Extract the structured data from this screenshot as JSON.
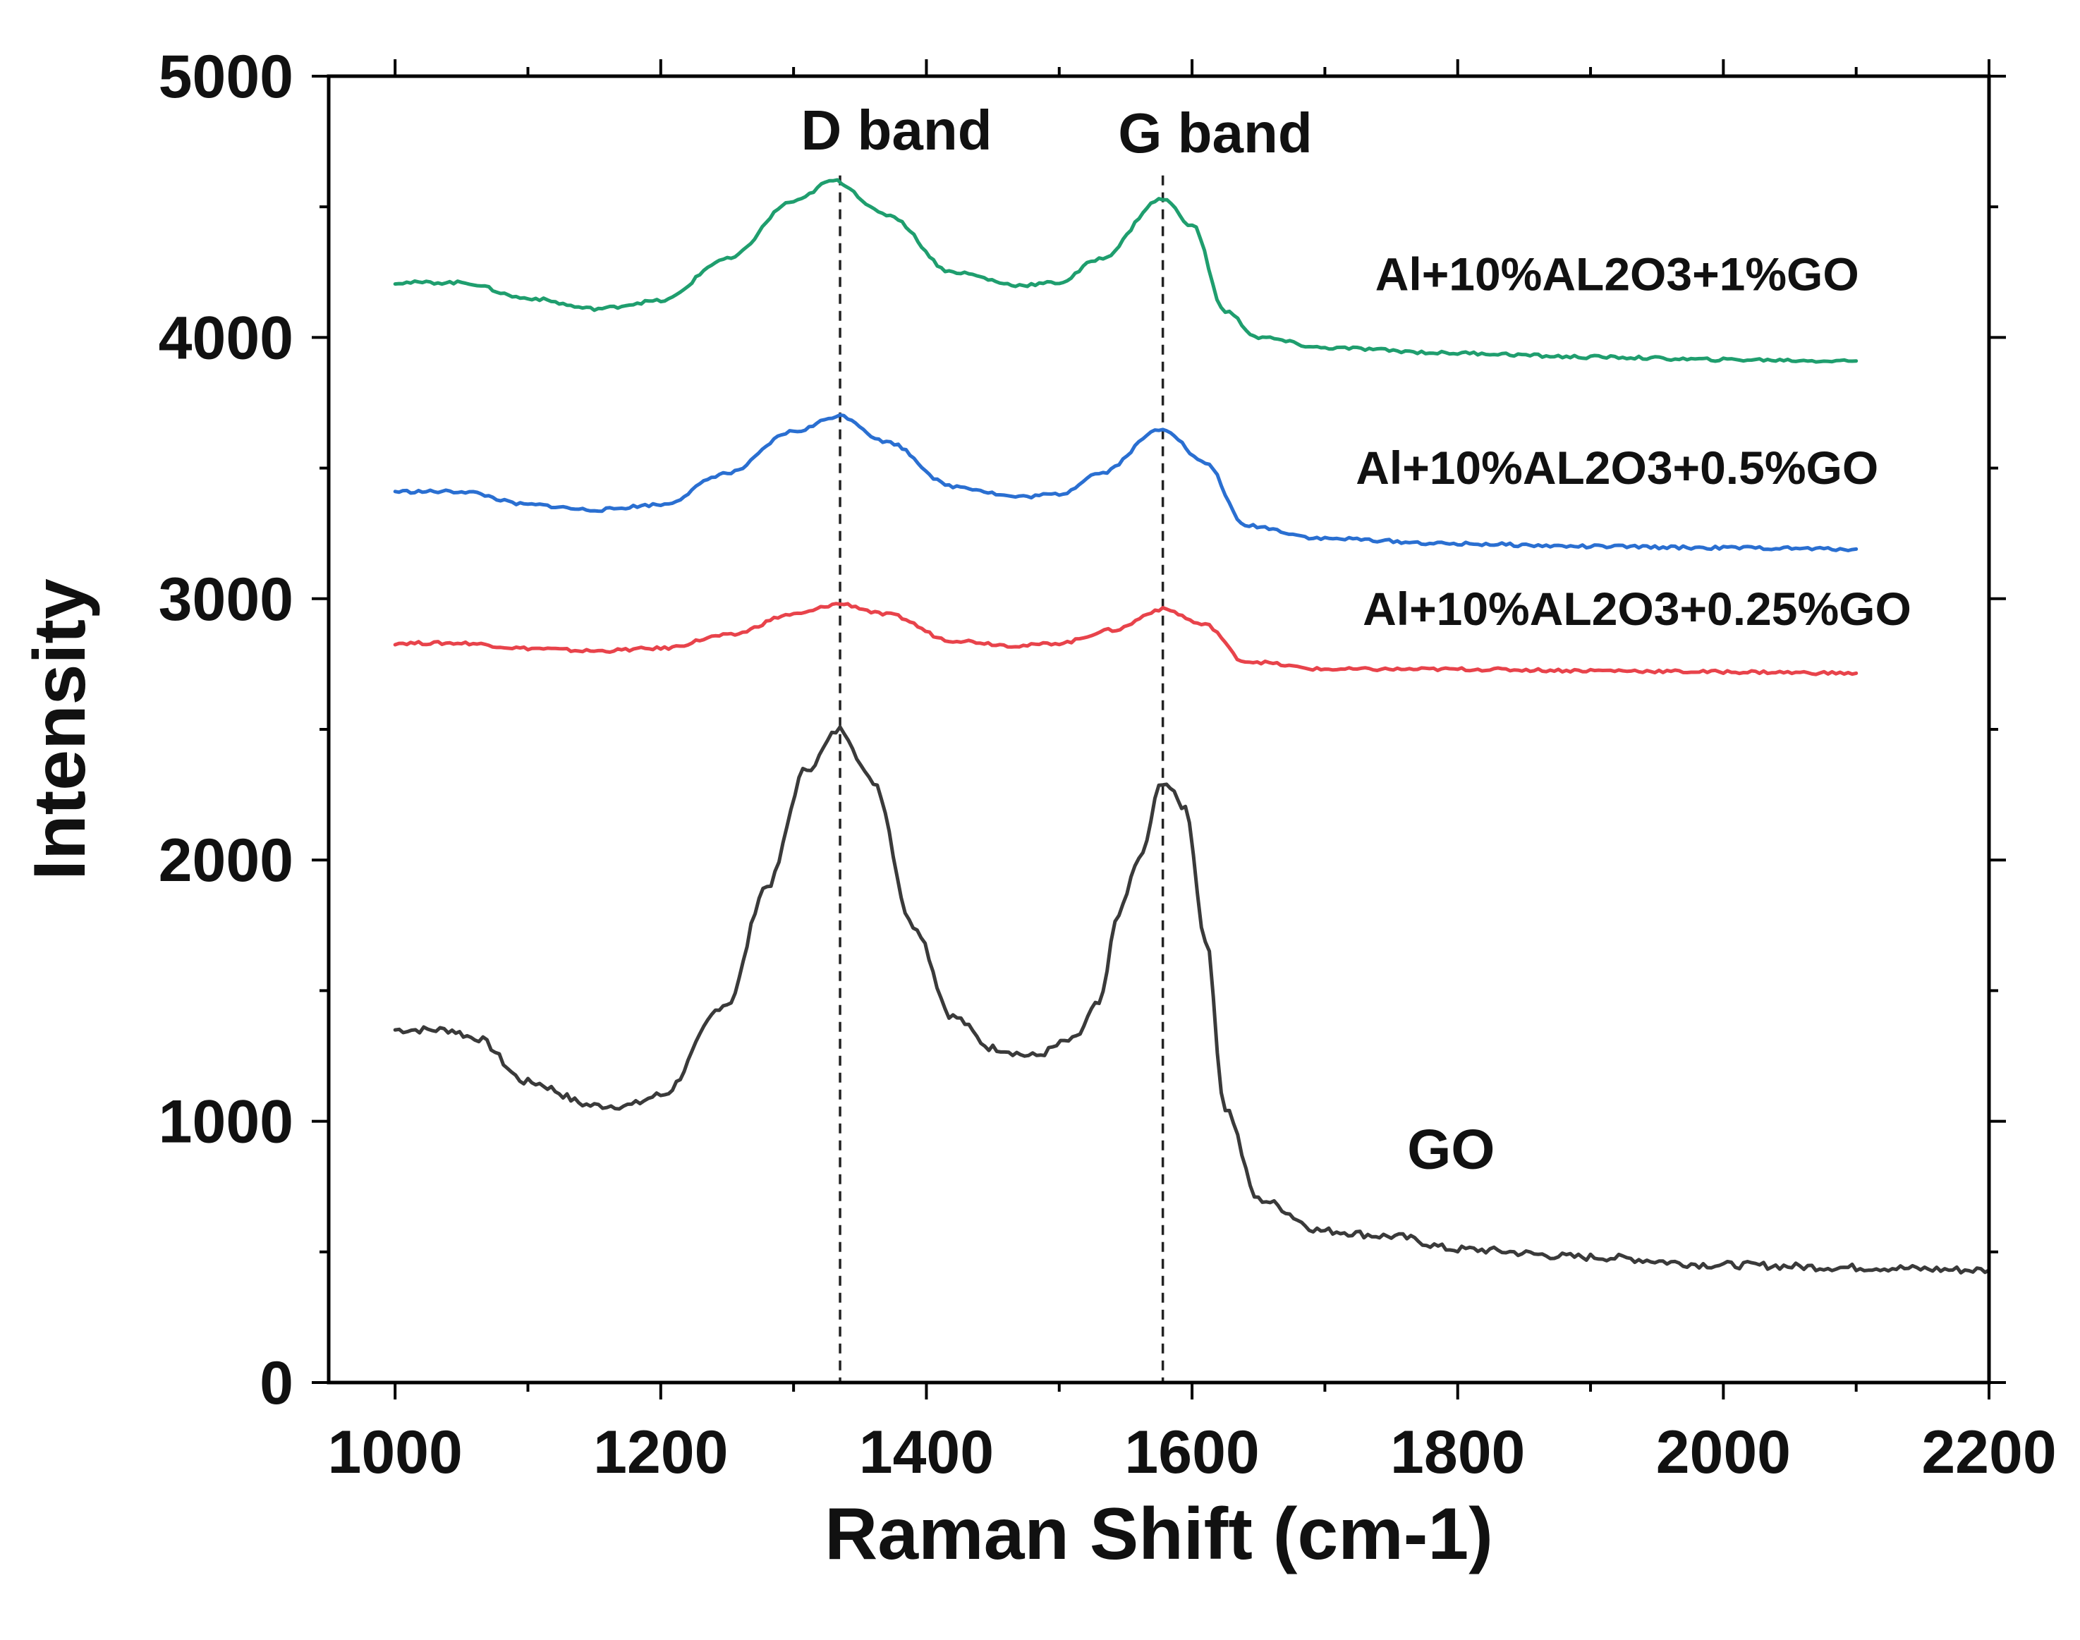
{
  "chart_data": {
    "type": "line",
    "xlabel": "Raman Shift (cm-1)",
    "ylabel": "Intensity",
    "xlim": [
      950,
      2200
    ],
    "ylim": [
      0,
      5000
    ],
    "x_ticks": [
      1000,
      1200,
      1400,
      1600,
      1800,
      2000,
      2200
    ],
    "y_ticks": [
      0,
      1000,
      2000,
      3000,
      4000,
      5000
    ],
    "grid": false,
    "reference_lines": [
      {
        "name": "D band",
        "x": 1335,
        "label": "D band"
      },
      {
        "name": "G band",
        "x": 1578,
        "label": "G band"
      }
    ],
    "series": [
      {
        "name": "GO",
        "label": "GO",
        "color": "#3a3a3a",
        "x": [
          1000,
          1040,
          1060,
          1100,
          1150,
          1175,
          1200,
          1250,
          1280,
          1310,
          1335,
          1360,
          1390,
          1420,
          1450,
          1480,
          1510,
          1530,
          1545,
          1560,
          1578,
          1595,
          1610,
          1625,
          1650,
          1700,
          1750,
          1800,
          1900,
          2000,
          2100,
          2200
        ],
        "y": [
          1350,
          1350,
          1320,
          1150,
          1060,
          1060,
          1100,
          1450,
          1900,
          2350,
          2500,
          2300,
          1750,
          1400,
          1280,
          1250,
          1310,
          1450,
          1800,
          2000,
          2300,
          2200,
          1700,
          1050,
          700,
          580,
          560,
          510,
          480,
          450,
          440,
          430
        ]
      },
      {
        "name": "Al+10%AL2O3+0.25%GO",
        "label": "Al+10%AL2O3+0.25%GO",
        "color": "#e8434b",
        "x": [
          1000,
          1050,
          1100,
          1150,
          1200,
          1250,
          1300,
          1335,
          1370,
          1420,
          1470,
          1500,
          1540,
          1578,
          1610,
          1640,
          1700,
          1800,
          1900,
          2000,
          2100
        ],
        "y": [
          2830,
          2830,
          2810,
          2800,
          2810,
          2860,
          2940,
          2980,
          2940,
          2840,
          2820,
          2830,
          2880,
          2960,
          2900,
          2760,
          2730,
          2730,
          2725,
          2720,
          2715
        ]
      },
      {
        "name": "Al+10%AL2O3+0.5%GO",
        "label": "Al+10%AL2O3+0.5%GO",
        "color": "#2a6fd1",
        "x": [
          1000,
          1050,
          1100,
          1150,
          1200,
          1250,
          1300,
          1335,
          1370,
          1420,
          1470,
          1500,
          1530,
          1578,
          1610,
          1640,
          1700,
          1800,
          1900,
          2000,
          2100
        ],
        "y": [
          3410,
          3410,
          3360,
          3340,
          3360,
          3480,
          3640,
          3700,
          3600,
          3430,
          3390,
          3400,
          3480,
          3650,
          3520,
          3280,
          3230,
          3210,
          3200,
          3195,
          3190
        ]
      },
      {
        "name": "Al+10%AL2O3+1%GO",
        "label": "Al+10%AL2O3+1%GO",
        "color": "#1f9e6e",
        "x": [
          1000,
          1050,
          1100,
          1150,
          1200,
          1250,
          1300,
          1330,
          1370,
          1420,
          1470,
          1500,
          1530,
          1578,
          1600,
          1625,
          1650,
          1700,
          1800,
          1900,
          2000,
          2100
        ],
        "y": [
          4210,
          4210,
          4150,
          4110,
          4140,
          4300,
          4520,
          4600,
          4470,
          4250,
          4200,
          4210,
          4300,
          4530,
          4430,
          4100,
          4000,
          3960,
          3940,
          3925,
          3915,
          3910
        ]
      }
    ]
  }
}
